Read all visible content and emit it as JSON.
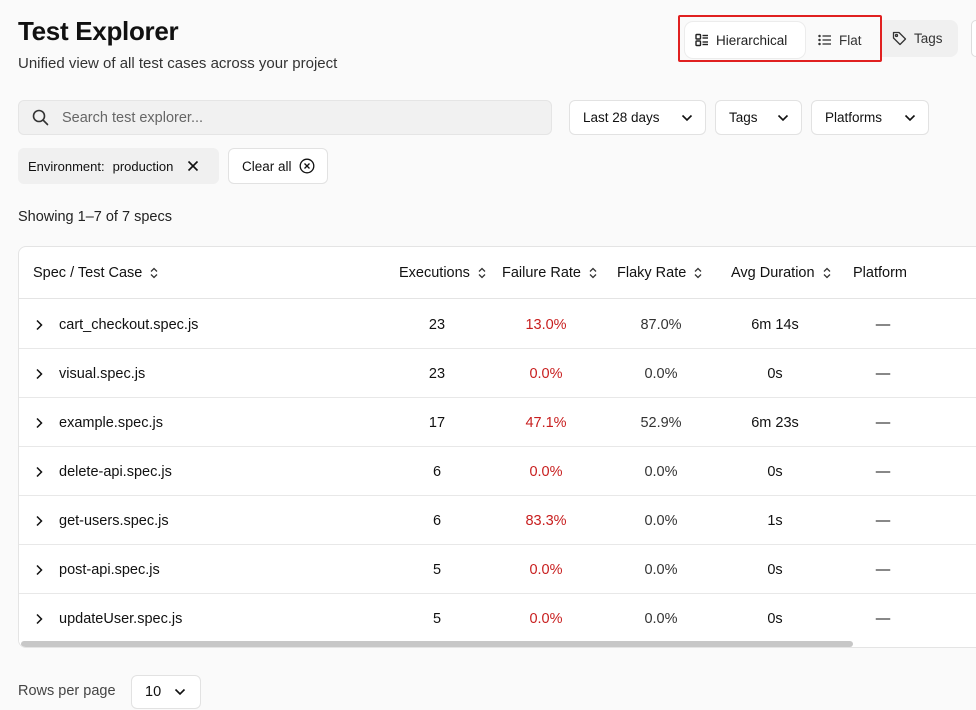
{
  "header": {
    "title": "Test Explorer",
    "subtitle": "Unified view of all test cases across your project"
  },
  "view_switch": {
    "hierarchical_label": "Hierarchical",
    "flat_label": "Flat",
    "tags_label": "Tags",
    "active": "Hierarchical"
  },
  "filters": {
    "search_placeholder": "Search test explorer...",
    "date_range": "Last 28 days",
    "tags": "Tags",
    "platforms": "Platforms"
  },
  "active_filters": {
    "chip_key": "Environment:",
    "chip_value": "production",
    "clear_all": "Clear all"
  },
  "summary": "Showing 1–7 of 7 specs",
  "table": {
    "columns": [
      "Spec / Test Case",
      "Executions",
      "Failure Rate",
      "Flaky Rate",
      "Avg Duration",
      "Platform"
    ],
    "rows": [
      {
        "spec": "cart_checkout.spec.js",
        "executions": "23",
        "failure": "13.0%",
        "flaky": "87.0%",
        "duration": "6m 14s",
        "platform": "—"
      },
      {
        "spec": "visual.spec.js",
        "executions": "23",
        "failure": "0.0%",
        "flaky": "0.0%",
        "duration": "0s",
        "platform": "—"
      },
      {
        "spec": "example.spec.js",
        "executions": "17",
        "failure": "47.1%",
        "flaky": "52.9%",
        "duration": "6m 23s",
        "platform": "—"
      },
      {
        "spec": "delete-api.spec.js",
        "executions": "6",
        "failure": "0.0%",
        "flaky": "0.0%",
        "duration": "0s",
        "platform": "—"
      },
      {
        "spec": "get-users.spec.js",
        "executions": "6",
        "failure": "83.3%",
        "flaky": "0.0%",
        "duration": "1s",
        "platform": "—"
      },
      {
        "spec": "post-api.spec.js",
        "executions": "5",
        "failure": "0.0%",
        "flaky": "0.0%",
        "duration": "0s",
        "platform": "—"
      },
      {
        "spec": "updateUser.spec.js",
        "executions": "5",
        "failure": "0.0%",
        "flaky": "0.0%",
        "duration": "0s",
        "platform": "—"
      }
    ]
  },
  "pagination": {
    "rows_per_page_label": "Rows per page",
    "rows_per_page": "10"
  },
  "colors": {
    "failure_text": "#c81e1e",
    "highlight_box": "#e02020"
  }
}
